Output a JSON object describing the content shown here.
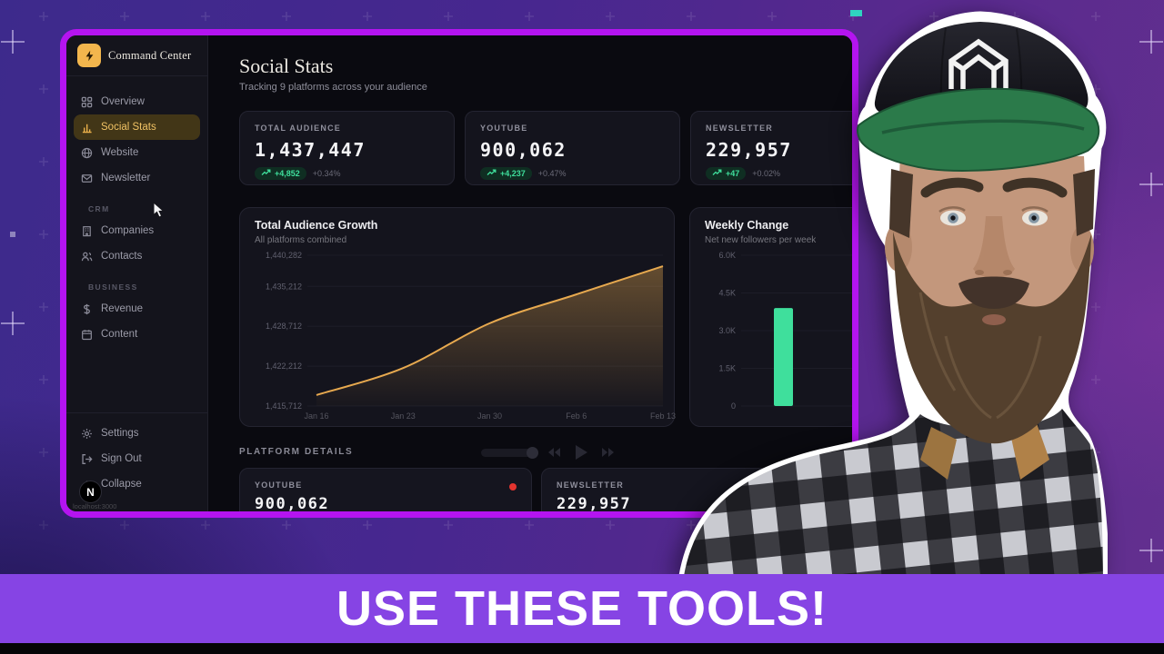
{
  "sidebar": {
    "brand": {
      "name": "Command Center",
      "icon": "bolt"
    },
    "groups": [
      {
        "label": "",
        "items": [
          {
            "label": "Overview",
            "icon": "grid",
            "active": false
          },
          {
            "label": "Social Stats",
            "icon": "bar-chart",
            "active": true
          },
          {
            "label": "Website",
            "icon": "globe",
            "active": false
          },
          {
            "label": "Newsletter",
            "icon": "mail",
            "active": false
          }
        ]
      },
      {
        "label": "CRM",
        "items": [
          {
            "label": "Companies",
            "icon": "building",
            "active": false
          },
          {
            "label": "Contacts",
            "icon": "users",
            "active": false
          }
        ]
      },
      {
        "label": "BUSINESS",
        "items": [
          {
            "label": "Revenue",
            "icon": "dollar",
            "active": false
          },
          {
            "label": "Content",
            "icon": "calendar",
            "active": false
          }
        ]
      }
    ],
    "footer_items": [
      {
        "label": "Settings",
        "icon": "gear"
      },
      {
        "label": "Sign Out",
        "icon": "sign-out"
      },
      {
        "label": "Collapse",
        "icon": "collapse"
      }
    ],
    "nextjs_badge": "N",
    "status_url": "localhost:3000"
  },
  "header": {
    "title": "Social Stats",
    "subtitle": "Tracking 9 platforms across your audience"
  },
  "stat_cards": [
    {
      "label": "TOTAL AUDIENCE",
      "value": "1,437,447",
      "delta": "+4,852",
      "delta_pct": "+0.34%"
    },
    {
      "label": "YOUTUBE",
      "value": "900,062",
      "delta": "+4,237",
      "delta_pct": "+0.47%"
    },
    {
      "label": "NEWSLETTER",
      "value": "229,957",
      "delta": "+47",
      "delta_pct": "+0.02%"
    }
  ],
  "chart_data": [
    {
      "type": "line",
      "title": "Total Audience Growth",
      "subtitle": "All platforms combined",
      "x": [
        "Jan 16",
        "Jan 23",
        "Jan 30",
        "Feb 6",
        "Feb 13"
      ],
      "series": [
        {
          "name": "Total audience",
          "values": [
            1417500,
            1421900,
            1429200,
            1433900,
            1438500
          ]
        }
      ],
      "y_ticks": [
        1440282,
        1435212,
        1428712,
        1422212,
        1415712
      ],
      "y_tick_labels": [
        "1,440,282",
        "1,435,212",
        "1,428,712",
        "1,422,212",
        "1,415,712"
      ],
      "ylim": [
        1415712,
        1440282
      ],
      "grid": "horizontal",
      "line_color": "#e7a94f",
      "area": true
    },
    {
      "type": "bar",
      "title": "Weekly Change",
      "subtitle": "Net new followers per week",
      "y_ticks": [
        6000,
        4500,
        3000,
        1500,
        0
      ],
      "y_tick_labels": [
        "6.0K",
        "4.5K",
        "3.0K",
        "1.5K",
        "0"
      ],
      "ylim": [
        0,
        6000
      ],
      "values": [
        3900
      ],
      "bar_color": "#3fdf9c"
    }
  ],
  "platform_details": {
    "heading": "PLATFORM DETAILS",
    "cards": [
      {
        "label": "YOUTUBE",
        "value": "900,062",
        "live_dot": true
      },
      {
        "label": "NEWSLETTER",
        "value": "229,957",
        "live_dot": false
      }
    ]
  },
  "banner": {
    "text": "USE THESE TOOLS!"
  },
  "colors": {
    "window_border": "#b414f0",
    "banner_purple": "#8644e4",
    "accent_amber": "#f3b64d",
    "positive_green": "#3fdf9c",
    "line_amber": "#e7a94f",
    "bar_mint": "#3fdf9c",
    "live_red": "#e3342f"
  }
}
